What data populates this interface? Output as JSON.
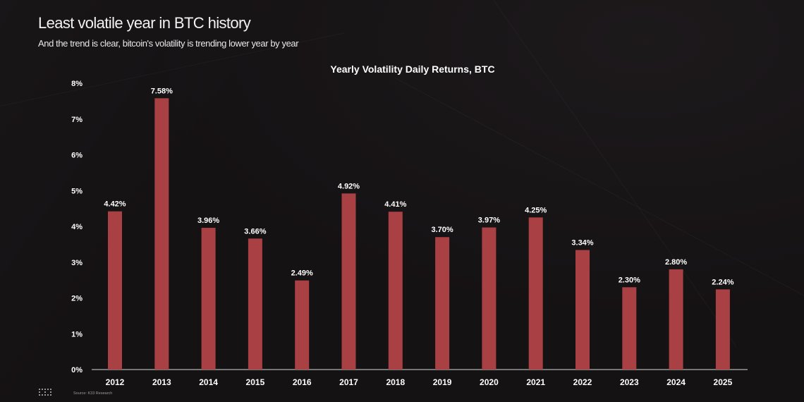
{
  "header": {
    "title": "Least volatile year in BTC history",
    "subtitle": "And the trend is clear, bitcoin's volatility is trending lower year by year"
  },
  "footer": {
    "source": "Source: K33 Research"
  },
  "colors": {
    "bar": "#a94043",
    "background": "#151214",
    "text": "#ffffff"
  },
  "chart_data": {
    "type": "bar",
    "title": "Yearly Volatility Daily Returns, BTC",
    "xlabel": "",
    "ylabel": "",
    "ylim": [
      0,
      8
    ],
    "y_ticks": [
      "0%",
      "1%",
      "2%",
      "3%",
      "4%",
      "5%",
      "6%",
      "7%",
      "8%"
    ],
    "grid": false,
    "legend": "none",
    "categories": [
      "2012",
      "2013",
      "2014",
      "2015",
      "2016",
      "2017",
      "2018",
      "2019",
      "2020",
      "2021",
      "2022",
      "2023",
      "2024",
      "2025"
    ],
    "values": [
      4.42,
      7.58,
      3.96,
      3.66,
      2.49,
      4.92,
      4.41,
      3.7,
      3.97,
      4.25,
      3.34,
      2.3,
      2.8,
      2.24
    ],
    "value_labels": [
      "4.42%",
      "7.58%",
      "3.96%",
      "3.66%",
      "2.49%",
      "4.92%",
      "4.41%",
      "3.70%",
      "3.97%",
      "4.25%",
      "3.34%",
      "2.30%",
      "2.80%",
      "2.24%"
    ]
  }
}
